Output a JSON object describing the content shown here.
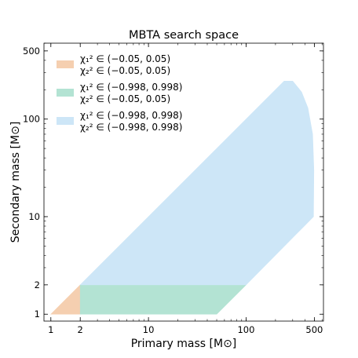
{
  "chart_data": {
    "type": "area",
    "title": "MBTA search space",
    "xlabel": "Primary mass [M⊙]",
    "ylabel": "Secondary mass [M⊙]",
    "x_scale": "log",
    "y_scale": "log",
    "xlim": [
      0.85,
      620
    ],
    "ylim": [
      0.85,
      600
    ],
    "x_ticks": [
      1,
      2,
      10,
      100,
      500
    ],
    "x_tick_labels": [
      "1",
      "2",
      "10",
      "100",
      "500"
    ],
    "y_ticks": [
      1,
      2,
      10,
      100,
      500
    ],
    "y_tick_labels": [
      "1",
      "2",
      "10",
      "100",
      "500"
    ],
    "grid": false,
    "legend_position": "top-left",
    "series": [
      {
        "name_line1": "χ₁² ∈ (−0.05, 0.05)",
        "name_line2": "χ₂² ∈ (−0.05, 0.05)",
        "color": "#f5cfb0",
        "polygon": [
          [
            1,
            1
          ],
          [
            2,
            1
          ],
          [
            2,
            2
          ]
        ]
      },
      {
        "name_line1": "χ₁² ∈ (−0.998, 0.998)",
        "name_line2": "χ₂² ∈ (−0.05, 0.05)",
        "color": "#b3e3d3",
        "polygon": [
          [
            2,
            1
          ],
          [
            50,
            1
          ],
          [
            100,
            2
          ],
          [
            2,
            2
          ]
        ]
      },
      {
        "name_line1": "χ₁² ∈ (−0.998, 0.998)",
        "name_line2": "χ₂² ∈ (−0.998, 0.998)",
        "color": "#cde6f7",
        "polygon": [
          [
            100,
            2
          ],
          [
            490,
            10
          ],
          [
            495,
            30
          ],
          [
            480,
            70
          ],
          [
            430,
            130
          ],
          [
            370,
            190
          ],
          [
            300,
            245
          ],
          [
            245,
            245
          ],
          [
            2,
            2
          ]
        ]
      }
    ]
  }
}
